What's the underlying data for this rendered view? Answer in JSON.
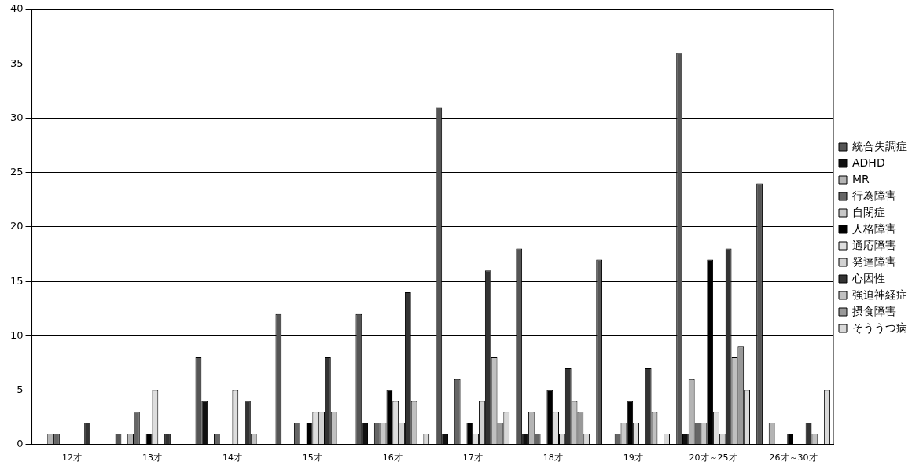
{
  "chart_data": {
    "type": "bar",
    "categories": [
      "12才",
      "13才",
      "14才",
      "15才",
      "16才",
      "17才",
      "18才",
      "19才",
      "20才～25才",
      "26才～30才"
    ],
    "series": [
      {
        "name": "統合失調症",
        "color": "#555555",
        "values": [
          0,
          1,
          8,
          12,
          12,
          31,
          18,
          17,
          36,
          24
        ]
      },
      {
        "name": "ADHD",
        "color": "#111111",
        "values": [
          0,
          0,
          4,
          0,
          2,
          1,
          1,
          0,
          1,
          0
        ]
      },
      {
        "name": "MR",
        "color": "#b4b4b4",
        "values": [
          1,
          1,
          0,
          0,
          0,
          0,
          3,
          0,
          6,
          2
        ]
      },
      {
        "name": "行為障害",
        "color": "#666666",
        "values": [
          1,
          3,
          1,
          2,
          2,
          6,
          1,
          1,
          2,
          0
        ]
      },
      {
        "name": "自閉症",
        "color": "#c8c8c8",
        "values": [
          0,
          0,
          0,
          0,
          2,
          0,
          0,
          2,
          2,
          0
        ]
      },
      {
        "name": "人格障害",
        "color": "#000000",
        "values": [
          0,
          1,
          0,
          2,
          5,
          2,
          5,
          4,
          17,
          1
        ]
      },
      {
        "name": "適応障害",
        "color": "#dddddd",
        "values": [
          0,
          5,
          5,
          3,
          4,
          1,
          3,
          2,
          3,
          0
        ]
      },
      {
        "name": "発達障害",
        "color": "#d2d2d2",
        "values": [
          0,
          0,
          0,
          3,
          2,
          4,
          1,
          0,
          1,
          0
        ]
      },
      {
        "name": "心因性",
        "color": "#333333",
        "values": [
          2,
          1,
          4,
          8,
          14,
          16,
          7,
          7,
          18,
          2
        ]
      },
      {
        "name": "強迫神経症",
        "color": "#c0c0c0",
        "values": [
          0,
          0,
          1,
          3,
          4,
          8,
          4,
          3,
          8,
          1
        ]
      },
      {
        "name": "摂食障害",
        "color": "#999999",
        "values": [
          0,
          0,
          0,
          0,
          0,
          2,
          3,
          0,
          9,
          0
        ]
      },
      {
        "name": "そううつ病",
        "color": "#d8d8d8",
        "values": [
          0,
          0,
          0,
          0,
          1,
          3,
          1,
          1,
          5,
          5
        ]
      }
    ],
    "ylim": [
      0,
      40
    ],
    "yticks": [
      0,
      5,
      10,
      15,
      20,
      25,
      30,
      35,
      40
    ],
    "grid": "y",
    "legend": "right"
  }
}
